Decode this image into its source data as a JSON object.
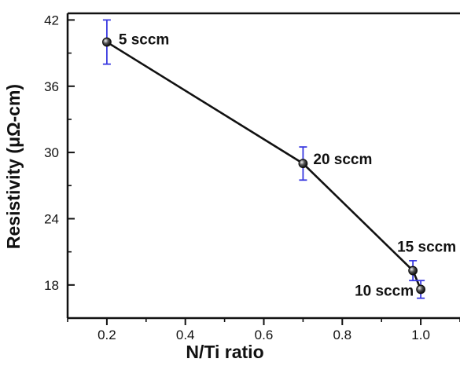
{
  "chart_data": {
    "type": "line",
    "title": "",
    "xlabel": "N/Ti ratio",
    "ylabel": "Resistivity (μΩ-cm)",
    "xlim": [
      0.1,
      1.1
    ],
    "ylim": [
      15,
      42.6
    ],
    "x_ticks": [
      0.2,
      0.4,
      0.6,
      0.8,
      1.0
    ],
    "x_tick_labels": [
      "0.2",
      "0.4",
      "0.6",
      "0.8",
      "1.0"
    ],
    "y_ticks": [
      18,
      24,
      30,
      36,
      42
    ],
    "y_tick_labels": [
      "18",
      "24",
      "30",
      "36",
      "42"
    ],
    "grid": false,
    "legend": "none",
    "line_order": [
      0,
      1,
      2,
      3
    ],
    "points": [
      {
        "x": 0.2,
        "y": 40.0,
        "error": 2.0,
        "label": "5 sccm"
      },
      {
        "x": 0.7,
        "y": 29.0,
        "error": 1.5,
        "label": "20 sccm"
      },
      {
        "x": 0.98,
        "y": 19.3,
        "error": 0.9,
        "label": "15 sccm"
      },
      {
        "x": 1.0,
        "y": 17.6,
        "error": 0.8,
        "label": "10 sccm"
      }
    ],
    "colors": {
      "line": "#111111",
      "marker": "#111111",
      "error_bar": "#3a3ae0",
      "axis": "#111111"
    }
  }
}
